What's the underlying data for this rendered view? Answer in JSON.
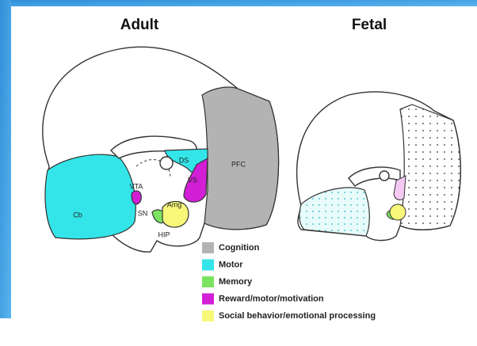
{
  "titles": {
    "adult": "Adult",
    "fetal": "Fetal"
  },
  "regions": [
    {
      "label": "Cb"
    },
    {
      "label": "VTA"
    },
    {
      "label": "SN"
    },
    {
      "label": "DS"
    },
    {
      "label": "VS"
    },
    {
      "label": "PFC"
    },
    {
      "label": "Amg"
    },
    {
      "label": "HIP"
    }
  ],
  "legend": [
    {
      "label": "Cognition",
      "color": "#b3b3b3"
    },
    {
      "label": "Motor",
      "color": "#33e5e8"
    },
    {
      "label": "Memory",
      "color": "#7be35f"
    },
    {
      "label": "Reward/motor/motivation",
      "color": "#d21fd6"
    },
    {
      "label": "Social behavior/emotional processing",
      "color": "#f7f77a"
    }
  ]
}
